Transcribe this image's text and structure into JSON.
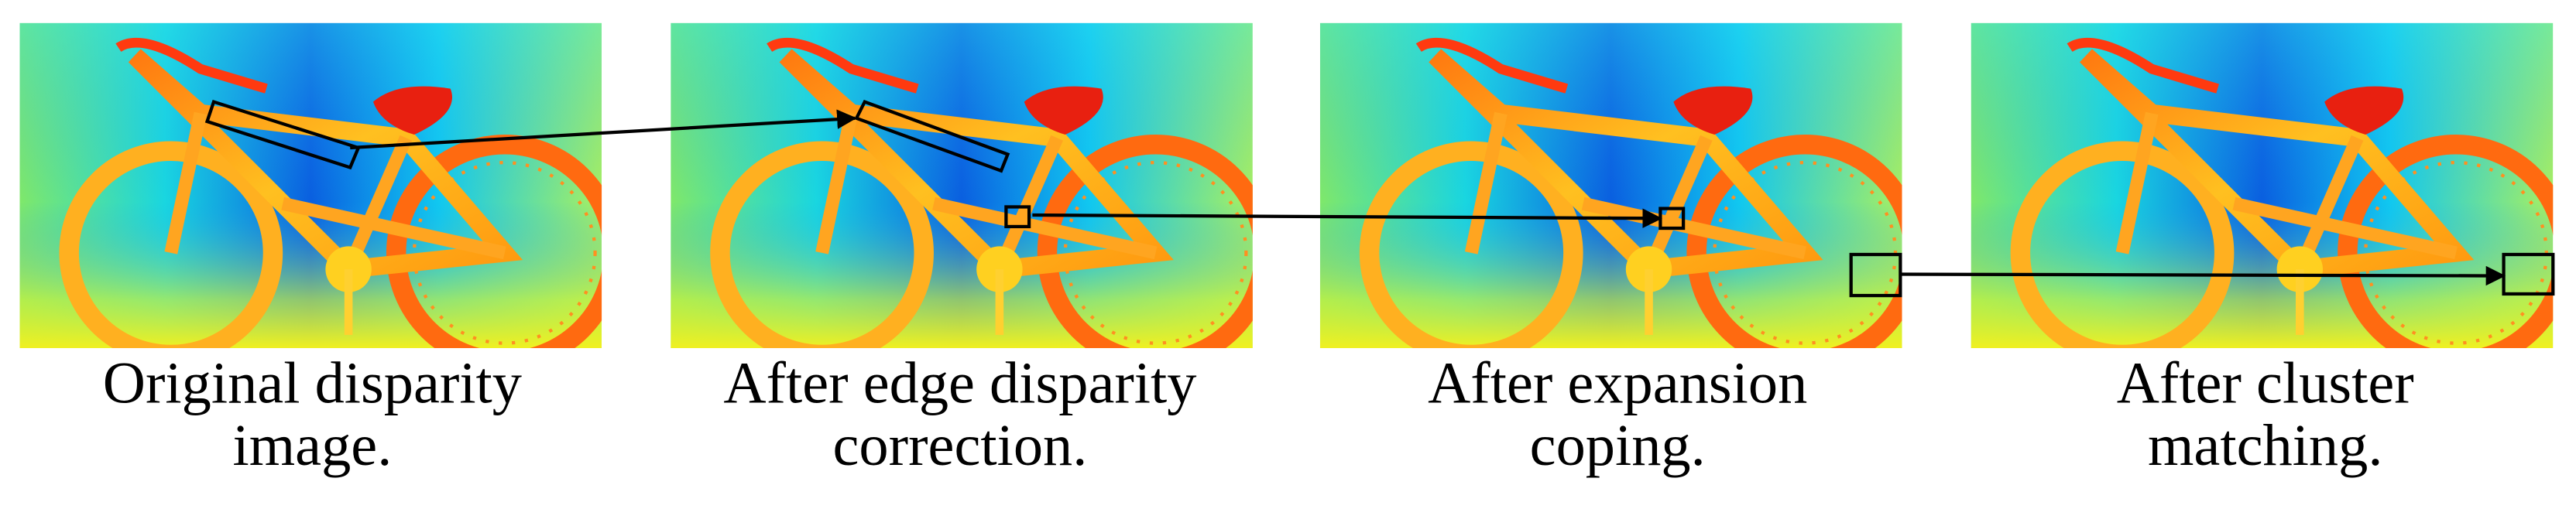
{
  "panels": [
    {
      "caption": [
        "Original disparity",
        "image."
      ]
    },
    {
      "caption": [
        "After edge disparity",
        "correction."
      ]
    },
    {
      "caption": [
        "After expansion",
        "coping."
      ]
    },
    {
      "caption": [
        "After cluster",
        "matching."
      ]
    }
  ]
}
